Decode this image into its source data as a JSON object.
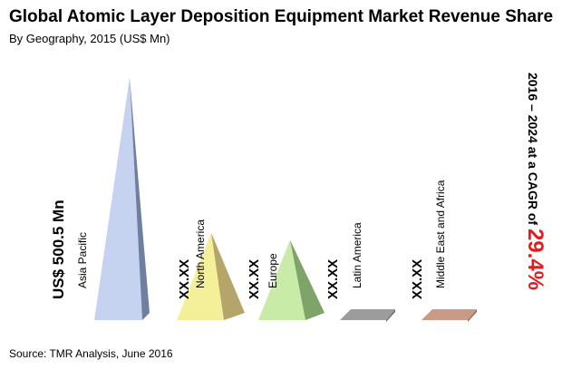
{
  "header": {
    "title": "Global Atomic Layer Deposition Equipment Market Revenue Share",
    "subtitle": "By Geography, 2015 (US$ Mn)"
  },
  "footer": {
    "source": "Source: TMR Analysis, June 2016"
  },
  "cagr": {
    "prefix": "2016 – 2024 at a CAGR of ",
    "value": "29.4%",
    "value_color": "#e8191b"
  },
  "chart_data": {
    "type": "bar",
    "categories": [
      "Asia Pacific",
      "North America",
      "Europe",
      "Latin America",
      "Middle East and Africa"
    ],
    "value_labels": [
      "US$ 500.5  Mn",
      "XX.XX",
      "XX.XX",
      "XX.XX",
      "XX.XX"
    ],
    "values": [
      500.5,
      180,
      165,
      5,
      5
    ],
    "colors": [
      {
        "front": "#c5d3f0",
        "side": "#6f7f9f"
      },
      {
        "front": "#f4f09a",
        "side": "#b6a56a"
      },
      {
        "front": "#c8eca8",
        "side": "#7fa46a"
      },
      {
        "front": "#9c9c9c",
        "side": "#707070"
      },
      {
        "front": "#c99a86",
        "side": "#9c6e5e"
      }
    ]
  }
}
